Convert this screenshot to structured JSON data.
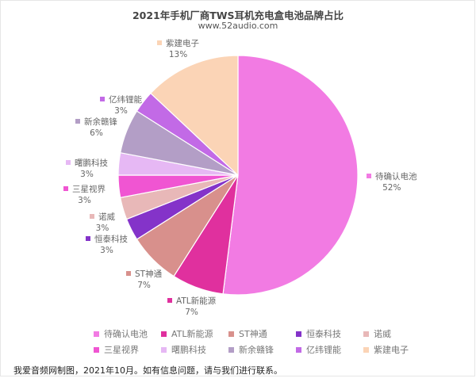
{
  "chart_data": {
    "type": "pie",
    "title": "2021年手机厂商TWS耳机充电盒电池品牌占比",
    "subtitle": "www.52audio.com",
    "start_angle": "12 o'clock, clockwise",
    "legend_position": "bottom",
    "categories": [
      "待确认电池",
      "ATL新能源",
      "ST神通",
      "恒泰科技",
      "诺威",
      "三星视界",
      "曙鹏科技",
      "新余赣锋",
      "亿纬锂能",
      "紫建电子"
    ],
    "values": [
      52,
      7,
      7,
      3,
      3,
      3,
      3,
      6,
      3,
      13
    ],
    "value_labels": [
      "52%",
      "7%",
      "7%",
      "3%",
      "3%",
      "3%",
      "3%",
      "6%",
      "3%",
      "13%"
    ],
    "colors": [
      "#f27be3",
      "#e0309e",
      "#d8908c",
      "#8433c9",
      "#e8b8b8",
      "#f055d2",
      "#e6b8f4",
      "#b39ec6",
      "#c26ae6",
      "#fbd4b6"
    ]
  },
  "header": {
    "title": "2021年手机厂商TWS耳机充电盒电池品牌占比",
    "subtitle": "www.52audio.com"
  },
  "labels": [
    {
      "name": "待确认电池",
      "pct": "52%"
    },
    {
      "name": "ATL新能源",
      "pct": "7%"
    },
    {
      "name": "ST神通",
      "pct": "7%"
    },
    {
      "name": "恒泰科技",
      "pct": "3%"
    },
    {
      "name": "诺威",
      "pct": "3%"
    },
    {
      "name": "三星视界",
      "pct": "3%"
    },
    {
      "name": "曙鹏科技",
      "pct": "3%"
    },
    {
      "name": "新余赣锋",
      "pct": "6%"
    },
    {
      "name": "亿纬锂能",
      "pct": "3%"
    },
    {
      "name": "紫建电子",
      "pct": "13%"
    }
  ],
  "legend": [
    "待确认电池",
    "ATL新能源",
    "ST神通",
    "恒泰科技",
    "诺威",
    "三星视界",
    "曙鹏科技",
    "新余赣锋",
    "亿纬锂能",
    "紫建电子"
  ],
  "footer": "我爱音频网制图，2021年10月。如有信息问题，请与我们进行联系。"
}
